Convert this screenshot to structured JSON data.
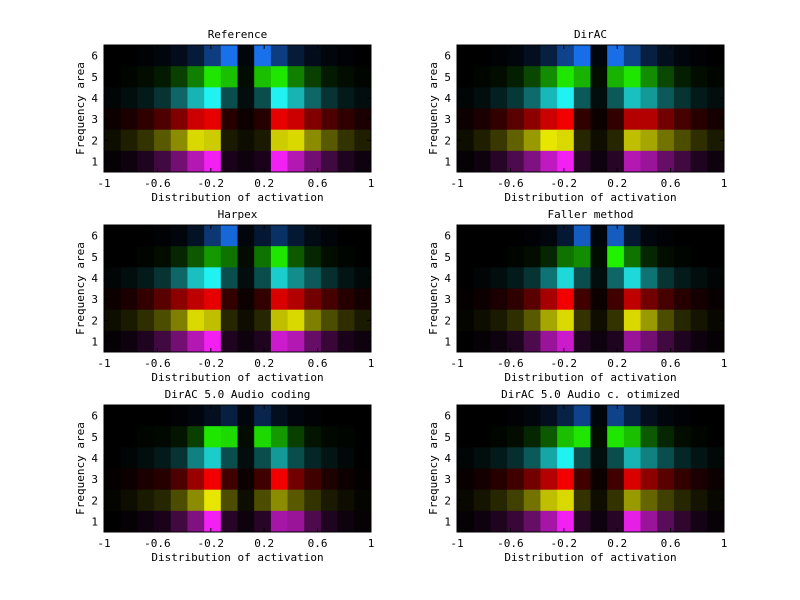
{
  "chart_data": [
    {
      "type": "heatmap",
      "title": "Reference",
      "xlabel": "Distribution of activation",
      "ylabel": "Frequency area",
      "xticks": [
        "-1",
        "-0.6",
        "-0.2",
        "0.2",
        "0.6",
        "1"
      ],
      "yticks": [
        "1",
        "2",
        "3",
        "4",
        "5",
        "6"
      ],
      "xlim": [
        -1,
        1
      ],
      "ylim": [
        1,
        6
      ],
      "bins": 16,
      "rows": [
        {
          "band": 6,
          "color": "#1a7aff",
          "values": [
            0.0,
            0.0,
            0.02,
            0.05,
            0.1,
            0.22,
            0.5,
            0.92,
            0.05,
            0.92,
            0.5,
            0.22,
            0.1,
            0.05,
            0.02,
            0.0
          ]
        },
        {
          "band": 5,
          "color": "#22ff00",
          "values": [
            0.0,
            0.02,
            0.05,
            0.1,
            0.25,
            0.5,
            0.9,
            0.75,
            0.05,
            0.75,
            0.9,
            0.5,
            0.25,
            0.1,
            0.05,
            0.02
          ]
        },
        {
          "band": 4,
          "color": "#22ffff",
          "values": [
            0.02,
            0.05,
            0.1,
            0.2,
            0.4,
            0.7,
            0.95,
            0.3,
            0.05,
            0.3,
            0.95,
            0.7,
            0.4,
            0.2,
            0.1,
            0.05
          ]
        },
        {
          "band": 3,
          "color": "#ff0000",
          "values": [
            0.05,
            0.1,
            0.18,
            0.3,
            0.5,
            0.8,
            0.9,
            0.15,
            0.05,
            0.15,
            0.9,
            0.8,
            0.5,
            0.3,
            0.18,
            0.1
          ]
        },
        {
          "band": 2,
          "color": "#ffff00",
          "values": [
            0.05,
            0.12,
            0.2,
            0.35,
            0.55,
            0.85,
            0.8,
            0.1,
            0.05,
            0.1,
            0.8,
            0.85,
            0.55,
            0.35,
            0.2,
            0.12
          ]
        },
        {
          "band": 1,
          "color": "#ff22ff",
          "values": [
            0.02,
            0.05,
            0.12,
            0.25,
            0.45,
            0.7,
            0.95,
            0.1,
            0.05,
            0.1,
            0.95,
            0.7,
            0.45,
            0.25,
            0.12,
            0.05
          ]
        }
      ]
    },
    {
      "type": "heatmap",
      "title": "DirAC",
      "xlabel": "Distribution of activation",
      "ylabel": "Frequency area",
      "xticks": [
        "-1",
        "-0.6",
        "-0.2",
        "0.2",
        "0.6",
        "1"
      ],
      "yticks": [
        "1",
        "2",
        "3",
        "4",
        "5",
        "6"
      ],
      "xlim": [
        -1,
        1
      ],
      "ylim": [
        1,
        6
      ],
      "bins": 16,
      "rows": [
        {
          "band": 6,
          "color": "#1a7aff",
          "values": [
            0.0,
            0.0,
            0.02,
            0.05,
            0.12,
            0.25,
            0.55,
            0.9,
            0.05,
            0.9,
            0.55,
            0.25,
            0.12,
            0.05,
            0.02,
            0.0
          ]
        },
        {
          "band": 5,
          "color": "#22ff00",
          "values": [
            0.0,
            0.02,
            0.05,
            0.12,
            0.28,
            0.55,
            0.9,
            0.7,
            0.05,
            0.7,
            0.9,
            0.55,
            0.28,
            0.12,
            0.05,
            0.02
          ]
        },
        {
          "band": 4,
          "color": "#22ffff",
          "values": [
            0.02,
            0.05,
            0.12,
            0.22,
            0.42,
            0.72,
            0.95,
            0.35,
            0.05,
            0.35,
            0.75,
            0.6,
            0.35,
            0.2,
            0.1,
            0.05
          ]
        },
        {
          "band": 3,
          "color": "#ff0000",
          "values": [
            0.05,
            0.1,
            0.2,
            0.35,
            0.55,
            0.8,
            0.95,
            0.2,
            0.05,
            0.2,
            0.7,
            0.7,
            0.45,
            0.28,
            0.15,
            0.08
          ]
        },
        {
          "band": 2,
          "color": "#ffff00",
          "values": [
            0.05,
            0.12,
            0.22,
            0.38,
            0.6,
            0.9,
            0.85,
            0.15,
            0.05,
            0.15,
            0.75,
            0.65,
            0.45,
            0.3,
            0.18,
            0.1
          ]
        },
        {
          "band": 1,
          "color": "#ff22ff",
          "values": [
            0.02,
            0.05,
            0.15,
            0.3,
            0.5,
            0.75,
            0.95,
            0.15,
            0.05,
            0.15,
            0.7,
            0.6,
            0.4,
            0.25,
            0.12,
            0.05
          ]
        }
      ]
    },
    {
      "type": "heatmap",
      "title": "Harpex",
      "xlabel": "Distribution of activation",
      "ylabel": "Frequency area",
      "xticks": [
        "-1",
        "-0.6",
        "-0.2",
        "0.2",
        "0.6",
        "1"
      ],
      "yticks": [
        "1",
        "2",
        "3",
        "4",
        "5",
        "6"
      ],
      "xlim": [
        -1,
        1
      ],
      "ylim": [
        1,
        6
      ],
      "bins": 16,
      "rows": [
        {
          "band": 6,
          "color": "#1a7aff",
          "values": [
            0.0,
            0.0,
            0.0,
            0.02,
            0.05,
            0.15,
            0.45,
            0.85,
            0.05,
            0.2,
            0.4,
            0.2,
            0.08,
            0.03,
            0.0,
            0.0
          ]
        },
        {
          "band": 5,
          "color": "#22ff00",
          "values": [
            0.0,
            0.0,
            0.02,
            0.05,
            0.15,
            0.35,
            0.6,
            0.45,
            0.05,
            0.45,
            0.9,
            0.35,
            0.15,
            0.05,
            0.02,
            0.0
          ]
        },
        {
          "band": 4,
          "color": "#22ffff",
          "values": [
            0.02,
            0.05,
            0.1,
            0.2,
            0.4,
            0.75,
            0.95,
            0.3,
            0.05,
            0.3,
            0.8,
            0.55,
            0.35,
            0.18,
            0.08,
            0.03
          ]
        },
        {
          "band": 3,
          "color": "#ff0000",
          "values": [
            0.05,
            0.1,
            0.2,
            0.35,
            0.55,
            0.75,
            0.9,
            0.2,
            0.05,
            0.2,
            0.85,
            0.7,
            0.45,
            0.28,
            0.15,
            0.08
          ]
        },
        {
          "band": 2,
          "color": "#ffff00",
          "values": [
            0.05,
            0.1,
            0.18,
            0.3,
            0.5,
            0.85,
            0.75,
            0.15,
            0.05,
            0.15,
            0.75,
            0.85,
            0.5,
            0.3,
            0.18,
            0.1
          ]
        },
        {
          "band": 1,
          "color": "#ff22ff",
          "values": [
            0.02,
            0.05,
            0.12,
            0.25,
            0.45,
            0.7,
            0.95,
            0.12,
            0.05,
            0.12,
            0.8,
            0.7,
            0.4,
            0.22,
            0.1,
            0.05
          ]
        }
      ]
    },
    {
      "type": "heatmap",
      "title": "Faller method",
      "xlabel": "Distribution of activation",
      "ylabel": "Frequency area",
      "xticks": [
        "-1",
        "-0.6",
        "-0.2",
        "0.2",
        "0.6",
        "1"
      ],
      "yticks": [
        "1",
        "2",
        "3",
        "4",
        "5",
        "6"
      ],
      "xlim": [
        -1,
        1
      ],
      "ylim": [
        1,
        6
      ],
      "bins": 16,
      "rows": [
        {
          "band": 6,
          "color": "#1a7aff",
          "values": [
            0.0,
            0.0,
            0.0,
            0.0,
            0.02,
            0.05,
            0.2,
            0.75,
            0.05,
            0.75,
            0.2,
            0.05,
            0.02,
            0.0,
            0.0,
            0.0
          ]
        },
        {
          "band": 5,
          "color": "#22ff00",
          "values": [
            0.0,
            0.0,
            0.0,
            0.02,
            0.05,
            0.15,
            0.45,
            0.55,
            0.05,
            0.95,
            0.45,
            0.15,
            0.05,
            0.02,
            0.0,
            0.0
          ]
        },
        {
          "band": 4,
          "color": "#22ffff",
          "values": [
            0.0,
            0.02,
            0.05,
            0.1,
            0.2,
            0.45,
            0.85,
            0.3,
            0.05,
            0.4,
            0.85,
            0.45,
            0.2,
            0.1,
            0.05,
            0.02
          ]
        },
        {
          "band": 3,
          "color": "#ff0000",
          "values": [
            0.02,
            0.05,
            0.1,
            0.18,
            0.35,
            0.65,
            0.95,
            0.25,
            0.05,
            0.25,
            0.75,
            0.45,
            0.28,
            0.15,
            0.08,
            0.03
          ]
        },
        {
          "band": 2,
          "color": "#ffff00",
          "values": [
            0.02,
            0.05,
            0.1,
            0.18,
            0.35,
            0.65,
            0.85,
            0.2,
            0.05,
            0.2,
            0.85,
            0.6,
            0.3,
            0.15,
            0.08,
            0.03
          ]
        },
        {
          "band": 1,
          "color": "#ff22ff",
          "values": [
            0.0,
            0.02,
            0.05,
            0.12,
            0.3,
            0.6,
            0.8,
            0.12,
            0.05,
            0.12,
            0.6,
            0.45,
            0.25,
            0.12,
            0.05,
            0.02
          ]
        }
      ]
    },
    {
      "type": "heatmap",
      "title": "DirAC 5.0 Audio coding",
      "xlabel": "Distribution of activation",
      "ylabel": "Frequency area",
      "xticks": [
        "-1",
        "-0.6",
        "-0.2",
        "0.2",
        "0.6",
        "1"
      ],
      "yticks": [
        "1",
        "2",
        "3",
        "4",
        "5",
        "6"
      ],
      "xlim": [
        -1,
        1
      ],
      "ylim": [
        1,
        6
      ],
      "bins": 16,
      "rows": [
        {
          "band": 6,
          "color": "#1a7aff",
          "values": [
            0.0,
            0.0,
            0.0,
            0.0,
            0.02,
            0.05,
            0.12,
            0.25,
            0.05,
            0.3,
            0.12,
            0.05,
            0.02,
            0.0,
            0.0,
            0.0
          ]
        },
        {
          "band": 5,
          "color": "#22ff00",
          "values": [
            0.0,
            0.0,
            0.02,
            0.03,
            0.08,
            0.25,
            0.9,
            0.85,
            0.05,
            0.85,
            0.6,
            0.25,
            0.08,
            0.03,
            0.02,
            0.0
          ]
        },
        {
          "band": 4,
          "color": "#22ffff",
          "values": [
            0.0,
            0.02,
            0.05,
            0.1,
            0.2,
            0.5,
            0.8,
            0.3,
            0.05,
            0.3,
            0.6,
            0.3,
            0.15,
            0.08,
            0.03,
            0.0
          ]
        },
        {
          "band": 3,
          "color": "#ff0000",
          "values": [
            0.02,
            0.05,
            0.1,
            0.15,
            0.3,
            0.6,
            0.95,
            0.25,
            0.05,
            0.25,
            0.95,
            0.45,
            0.25,
            0.12,
            0.05,
            0.02
          ]
        },
        {
          "band": 2,
          "color": "#ffff00",
          "values": [
            0.02,
            0.05,
            0.1,
            0.15,
            0.3,
            0.55,
            0.9,
            0.3,
            0.05,
            0.3,
            0.55,
            0.35,
            0.2,
            0.1,
            0.05,
            0.02
          ]
        },
        {
          "band": 1,
          "color": "#ff22ff",
          "values": [
            0.0,
            0.02,
            0.05,
            0.1,
            0.25,
            0.5,
            0.95,
            0.15,
            0.05,
            0.15,
            0.65,
            0.6,
            0.3,
            0.12,
            0.05,
            0.02
          ]
        }
      ]
    },
    {
      "type": "heatmap",
      "title": "DirAC 5.0 Audio c. otimized",
      "xlabel": "Distribution of activation",
      "ylabel": "Frequency area",
      "xticks": [
        "-1",
        "-0.6",
        "-0.2",
        "0.2",
        "0.6",
        "1"
      ],
      "yticks": [
        "1",
        "2",
        "3",
        "4",
        "5",
        "6"
      ],
      "xlim": [
        -1,
        1
      ],
      "ylim": [
        1,
        6
      ],
      "bins": 16,
      "rows": [
        {
          "band": 6,
          "color": "#1a7aff",
          "values": [
            0.0,
            0.0,
            0.0,
            0.02,
            0.05,
            0.12,
            0.28,
            0.55,
            0.05,
            0.55,
            0.28,
            0.12,
            0.05,
            0.02,
            0.0,
            0.0
          ]
        },
        {
          "band": 5,
          "color": "#22ff00",
          "values": [
            0.0,
            0.0,
            0.02,
            0.05,
            0.15,
            0.35,
            0.75,
            0.9,
            0.05,
            0.9,
            0.75,
            0.35,
            0.15,
            0.05,
            0.02,
            0.0
          ]
        },
        {
          "band": 4,
          "color": "#22ffff",
          "values": [
            0.02,
            0.05,
            0.1,
            0.18,
            0.35,
            0.65,
            0.95,
            0.3,
            0.05,
            0.3,
            0.7,
            0.5,
            0.3,
            0.15,
            0.08,
            0.03
          ]
        },
        {
          "band": 3,
          "color": "#ff0000",
          "values": [
            0.03,
            0.08,
            0.15,
            0.25,
            0.45,
            0.7,
            0.95,
            0.25,
            0.05,
            0.25,
            0.85,
            0.55,
            0.35,
            0.2,
            0.1,
            0.05
          ]
        },
        {
          "band": 2,
          "color": "#ffff00",
          "values": [
            0.03,
            0.08,
            0.15,
            0.25,
            0.45,
            0.75,
            0.85,
            0.2,
            0.05,
            0.2,
            0.6,
            0.4,
            0.25,
            0.15,
            0.08,
            0.03
          ]
        },
        {
          "band": 1,
          "color": "#ff22ff",
          "values": [
            0.02,
            0.05,
            0.12,
            0.22,
            0.4,
            0.65,
            0.95,
            0.15,
            0.05,
            0.15,
            0.9,
            0.6,
            0.35,
            0.18,
            0.08,
            0.03
          ]
        }
      ]
    }
  ]
}
